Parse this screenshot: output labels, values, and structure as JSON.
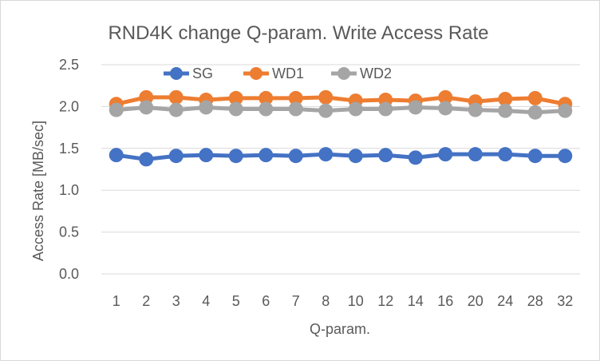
{
  "chart_data": {
    "type": "line",
    "title": "RND4K change Q-param. Write Access Rate",
    "xlabel": "Q-param.",
    "ylabel": "Access Rate [MB/sec]",
    "categories": [
      "1",
      "2",
      "3",
      "4",
      "5",
      "6",
      "7",
      "8",
      "10",
      "12",
      "14",
      "16",
      "20",
      "24",
      "28",
      "32"
    ],
    "ylim": [
      0,
      2.5
    ],
    "yticks": [
      "0.0",
      "0.5",
      "1.0",
      "1.5",
      "2.0",
      "2.5"
    ],
    "grid": true,
    "legend": "top-center",
    "series": [
      {
        "name": "SG",
        "color": "#4472c4",
        "values": [
          1.42,
          1.37,
          1.41,
          1.42,
          1.41,
          1.42,
          1.41,
          1.43,
          1.41,
          1.42,
          1.39,
          1.43,
          1.43,
          1.43,
          1.41,
          1.41
        ]
      },
      {
        "name": "WD1",
        "color": "#ed7d31",
        "values": [
          2.03,
          2.11,
          2.11,
          2.08,
          2.1,
          2.1,
          2.1,
          2.11,
          2.07,
          2.08,
          2.07,
          2.11,
          2.06,
          2.09,
          2.1,
          2.03
        ]
      },
      {
        "name": "WD2",
        "color": "#a5a5a5",
        "values": [
          1.96,
          1.99,
          1.96,
          1.99,
          1.97,
          1.97,
          1.97,
          1.95,
          1.97,
          1.97,
          1.99,
          1.98,
          1.96,
          1.95,
          1.93,
          1.95
        ]
      }
    ]
  }
}
